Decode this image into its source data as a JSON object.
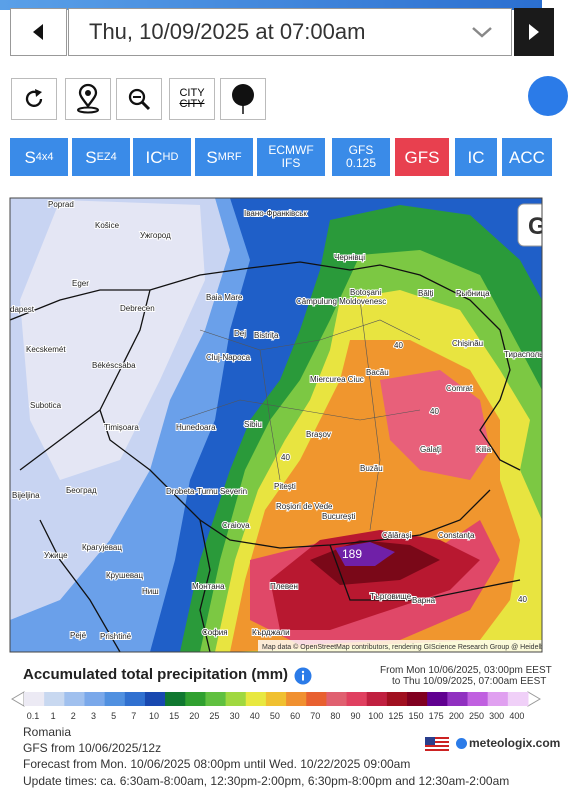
{
  "nav": {
    "date": "Thu, 10/09/2025 at 07:00am"
  },
  "tools": {
    "city": "CITY",
    "city_strike": "CITY"
  },
  "models": [
    {
      "main": "S",
      "sub": "4x4"
    },
    {
      "main": "S",
      "sub": "EZ4"
    },
    {
      "main": "IC",
      "sub": "HD"
    },
    {
      "main": "S",
      "sub": "MRF"
    },
    {
      "main": "ECMWF",
      "second": "IFS"
    },
    {
      "main": "GFS",
      "second": "0.125"
    },
    {
      "main": "GFS"
    },
    {
      "main": "IC"
    },
    {
      "main": "ACC"
    }
  ],
  "map": {
    "labels": [
      "Poprad",
      "Košice",
      "Ужгород",
      "Івано-Франківськ",
      "Чернівці",
      "Eger",
      "Debrecen",
      "Baia Mare",
      "Botoșani",
      "Bălți",
      "Рыбница",
      "dapest",
      "Câmpulung Moldovenesc",
      "Dej",
      "Bistrița",
      "Chișinău",
      "Kecskemét",
      "Cluj-Napoca",
      "Тирасполь",
      "Békéscsaba",
      "Bacău",
      "Miercurea Ciuc",
      "Subotica",
      "Comrat",
      "Timișoara",
      "Hunedoara",
      "Sibiu",
      "Brașov",
      "Galați",
      "Kilia",
      "Buzău",
      "Београд",
      "Bijeljina",
      "Pitești",
      "Drobeta-Turnu Severin",
      "Craiova",
      "București",
      "Constanța",
      "Roșiori de Vede",
      "Călărași",
      "Ужице",
      "Крагујевац",
      "Крушевац",
      "Монтана",
      "Плевен",
      "Търговище",
      "Ниш",
      "Варна",
      "Pejë",
      "Prishtinë",
      "София",
      "Кърджали",
      "40",
      "40",
      "40",
      "40"
    ],
    "max": "189",
    "corner": "G",
    "attribution": "Map data © OpenStreetMap contributors, rendering GIScience Research Group @ Heidelberg University"
  },
  "legend": {
    "title": "Accumulated total precipitation (mm)",
    "from": "From Mon 10/06/2025, 03:00pm EEST",
    "to": "to Thu 10/09/2025, 07:00am EEST",
    "scale": [
      "0.1",
      "1",
      "2",
      "3",
      "5",
      "7",
      "10",
      "15",
      "20",
      "25",
      "30",
      "40",
      "50",
      "60",
      "70",
      "80",
      "90",
      "100",
      "125",
      "150",
      "175",
      "200",
      "250",
      "300",
      "400"
    ]
  },
  "info": {
    "region": "Romania",
    "run": "GFS from 10/06/2025/12z",
    "forecast": "Forecast from Mon. 10/06/2025 08:00pm until Wed. 10/22/2025 09:00am",
    "updates": "Update times: ca. 6:30am-8:00am, 12:30pm-2:00pm, 6:30pm-8:00pm and 12:30am-2:00am",
    "brand": "meteologix.com"
  }
}
